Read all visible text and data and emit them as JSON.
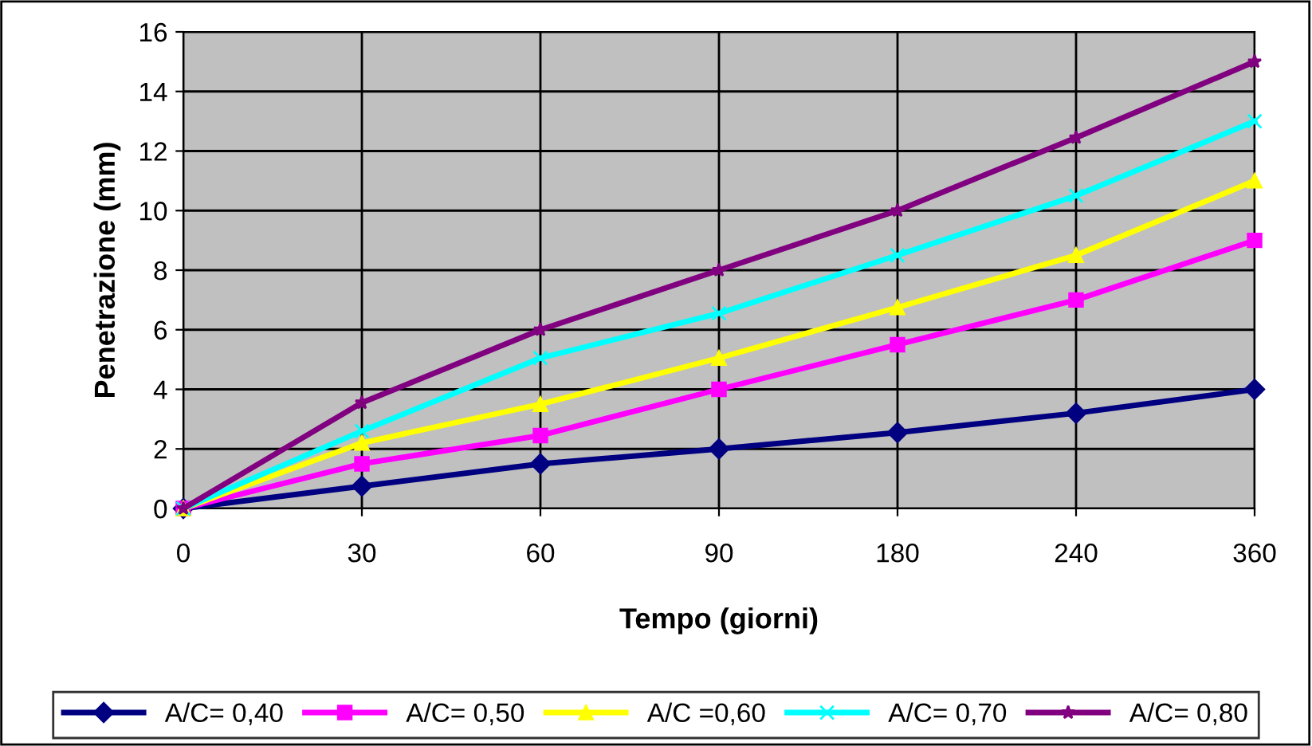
{
  "chart_data": {
    "type": "line",
    "xlabel": "Tempo (giorni)",
    "ylabel": "Penetrazione (mm)",
    "categories": [
      "0",
      "30",
      "60",
      "90",
      "180",
      "240",
      "360"
    ],
    "series": [
      {
        "name": "A/C= 0,40",
        "color": "#000080",
        "marker": "diamond",
        "values": [
          0,
          0.75,
          1.5,
          2.0,
          2.55,
          3.2,
          4.0
        ]
      },
      {
        "name": "A/C= 0,50",
        "color": "#ff00ff",
        "marker": "square",
        "values": [
          0,
          1.5,
          2.45,
          4.0,
          5.5,
          7.0,
          9.0
        ]
      },
      {
        "name": "A/C =0,60",
        "color": "#ffff00",
        "marker": "triangle",
        "values": [
          0,
          2.2,
          3.5,
          5.05,
          6.75,
          8.5,
          11.0
        ]
      },
      {
        "name": "A/C= 0,70",
        "color": "#00ffff",
        "marker": "cross",
        "values": [
          0,
          2.6,
          5.05,
          6.55,
          8.5,
          10.5,
          13.0
        ]
      },
      {
        "name": "A/C= 0,80",
        "color": "#800080",
        "marker": "star",
        "values": [
          0,
          3.55,
          6.0,
          8.0,
          10.0,
          12.45,
          15.0
        ]
      }
    ],
    "ylim": [
      0,
      16
    ],
    "yticks": [
      0,
      2,
      4,
      6,
      8,
      10,
      12,
      14,
      16
    ],
    "grid": true,
    "legend": "bottom",
    "line_style": "solid"
  }
}
